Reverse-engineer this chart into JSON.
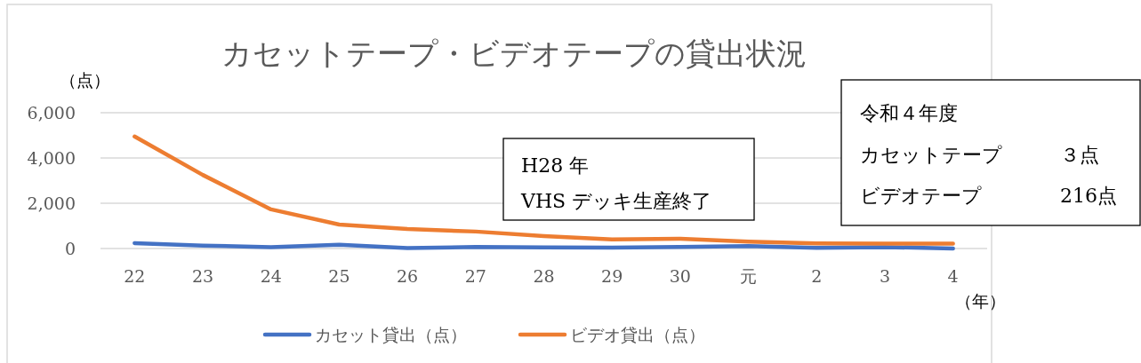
{
  "chart_data": {
    "type": "line",
    "title": "カセットテープ・ビデオテープの貸出状況",
    "ylabel": "（点）",
    "xlabel": "（年）",
    "categories": [
      "22",
      "23",
      "24",
      "25",
      "26",
      "27",
      "28",
      "29",
      "30",
      "元",
      "2",
      "3",
      "4"
    ],
    "series": [
      {
        "name": "カセット貸出（点）",
        "color": "#4472c4",
        "values": [
          240,
          130,
          60,
          170,
          20,
          70,
          50,
          40,
          70,
          110,
          30,
          60,
          3
        ]
      },
      {
        "name": "ビデオ貸出（点）",
        "color": "#ed7d31",
        "values": [
          4950,
          3250,
          1730,
          1060,
          860,
          750,
          550,
          400,
          430,
          300,
          230,
          220,
          216
        ]
      }
    ],
    "ylim": [
      0,
      6000
    ],
    "yticks": [
      {
        "value": 0,
        "label": "0"
      },
      {
        "value": 2000,
        "label": "2,000"
      },
      {
        "value": 4000,
        "label": "4,000"
      },
      {
        "value": 6000,
        "label": "6,000"
      }
    ],
    "grid": "y",
    "legend": "bottom",
    "marker": "none",
    "line_style": "solid",
    "annotations": [
      "H28 年",
      "VHS デッキ生産終了",
      "令和４年度",
      "カセットテープ",
      "３点",
      "ビデオテープ",
      "216点"
    ]
  }
}
